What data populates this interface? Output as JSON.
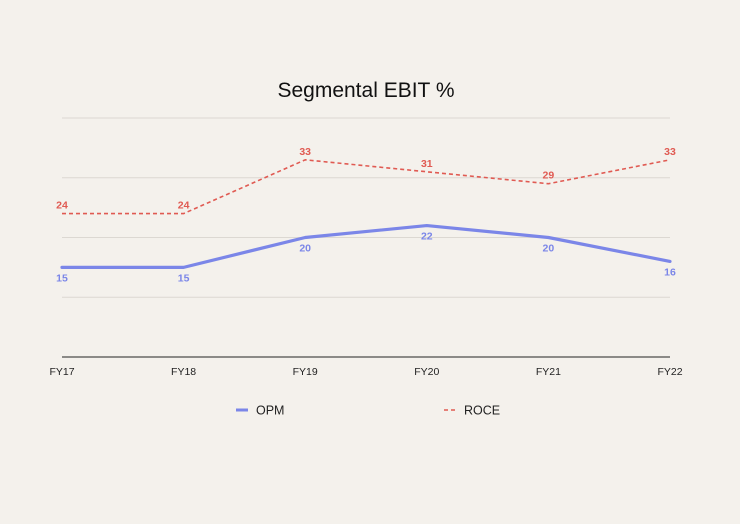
{
  "chart_data": {
    "type": "line",
    "title": "Segmental EBIT %",
    "xlabel": "",
    "ylabel": "",
    "categories": [
      "FY17",
      "FY18",
      "FY19",
      "FY20",
      "FY21",
      "FY22"
    ],
    "ylim": [
      0,
      40
    ],
    "grid": true,
    "legend_position": "bottom",
    "series": [
      {
        "name": "OPM",
        "values": [
          15,
          15,
          20,
          22,
          20,
          16
        ],
        "color": "#7b86e8",
        "style": "solid",
        "labels_position": "below"
      },
      {
        "name": "ROCE",
        "values": [
          24,
          24,
          33,
          31,
          29,
          33
        ],
        "color": "#e05a52",
        "style": "dashed",
        "labels_position": "above"
      }
    ]
  }
}
